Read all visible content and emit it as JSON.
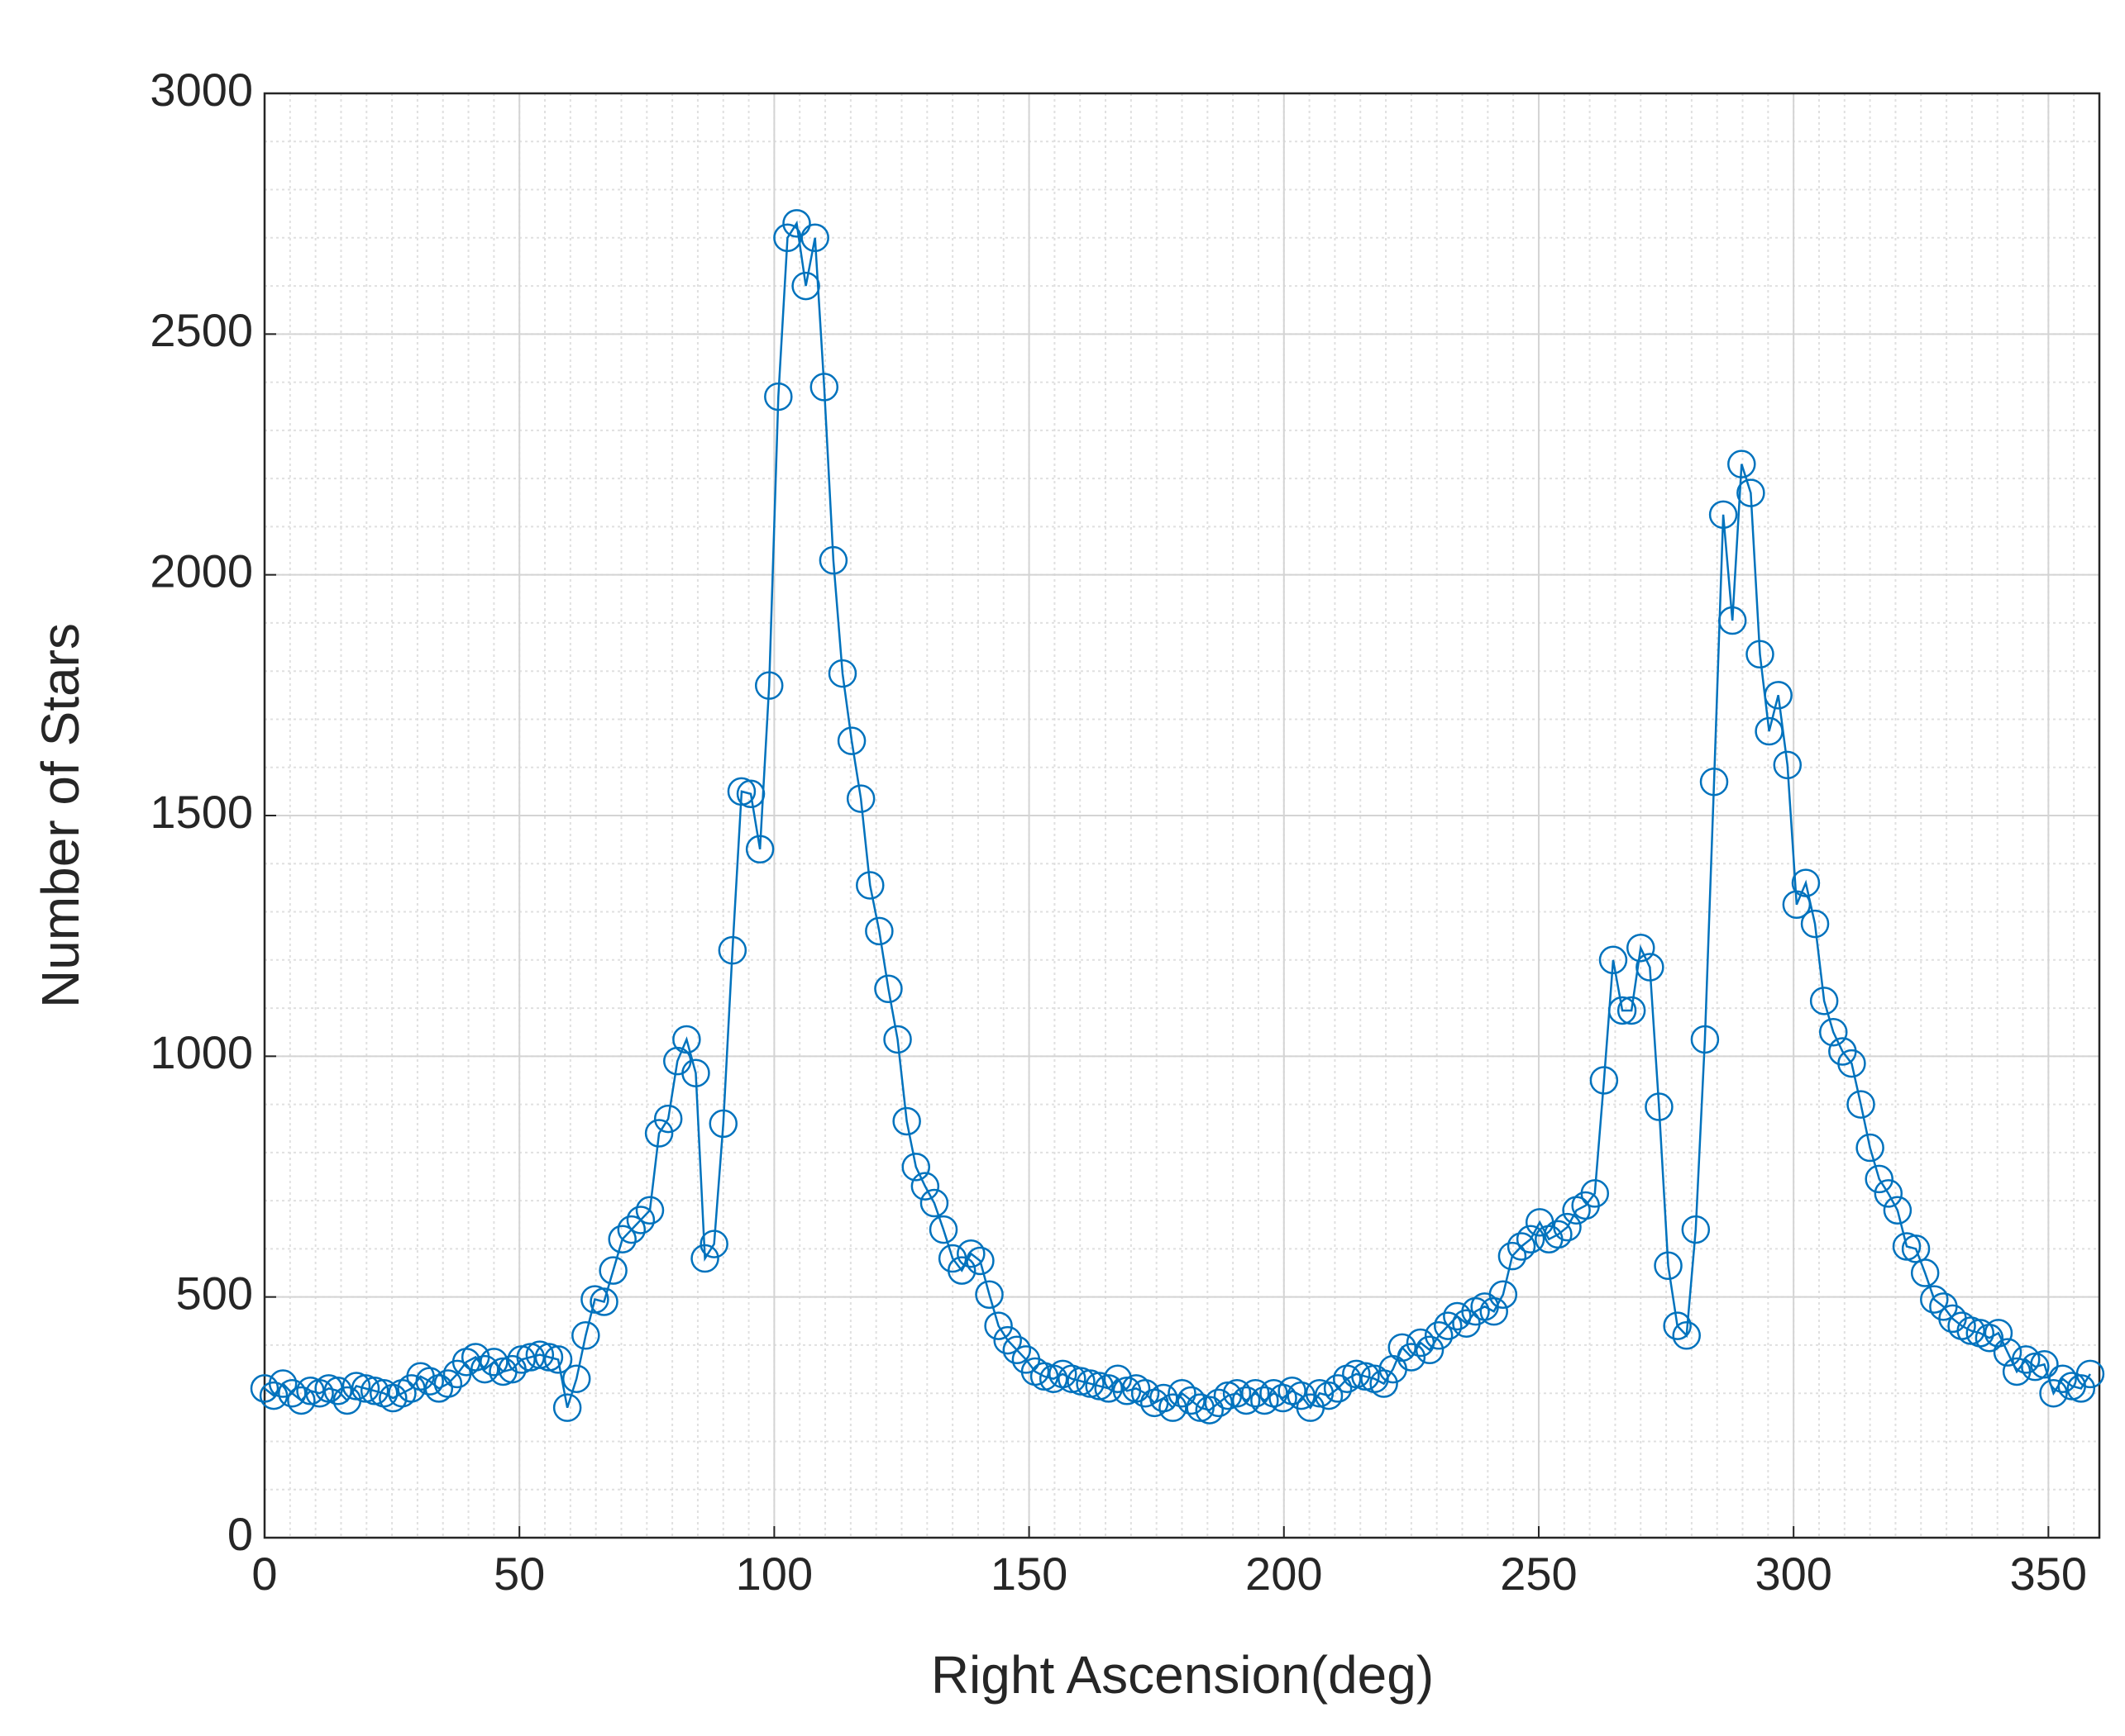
{
  "chart_data": {
    "type": "line",
    "xlabel": "Right Ascension(deg)",
    "ylabel": "Number of Stars",
    "x": [
      0,
      1.8,
      3.6,
      5.4,
      7.2,
      9,
      10.8,
      12.6,
      14.4,
      16.2,
      18,
      19.8,
      21.6,
      23.4,
      25.2,
      27,
      28.8,
      30.6,
      32.4,
      34.2,
      36,
      37.8,
      39.6,
      41.4,
      43.2,
      45,
      46.8,
      48.6,
      50.4,
      52.2,
      54,
      55.8,
      57.6,
      59.4,
      61.2,
      63,
      64.8,
      66.6,
      68.4,
      70.2,
      72,
      73.8,
      75.6,
      77.4,
      79.2,
      81,
      82.8,
      84.6,
      86.4,
      88.2,
      90,
      91.8,
      93.6,
      95.4,
      97.2,
      99,
      100.8,
      102.6,
      104.4,
      106.2,
      108,
      109.8,
      111.6,
      113.4,
      115.2,
      117,
      118.8,
      120.6,
      122.4,
      124.2,
      126,
      127.8,
      129.6,
      131.4,
      133.2,
      135,
      136.8,
      138.6,
      140.4,
      142.2,
      144,
      145.8,
      147.6,
      149.4,
      151.2,
      153,
      154.8,
      156.6,
      158.4,
      160.2,
      162,
      163.8,
      165.6,
      167.4,
      169.2,
      171,
      172.8,
      174.6,
      176.4,
      178.2,
      180,
      181.8,
      183.6,
      185.4,
      187.2,
      189,
      190.8,
      192.6,
      194.4,
      196.2,
      198,
      199.8,
      201.6,
      203.4,
      205.2,
      207,
      208.8,
      210.6,
      212.4,
      214.2,
      216,
      217.8,
      219.6,
      221.4,
      223.2,
      225,
      226.8,
      228.6,
      230.4,
      232.2,
      234,
      235.8,
      237.6,
      239.4,
      241.2,
      243,
      244.8,
      246.6,
      248.4,
      250.2,
      252,
      253.8,
      255.6,
      257.4,
      259.2,
      261,
      262.8,
      264.6,
      266.4,
      268.2,
      270,
      271.8,
      273.6,
      275.4,
      277.2,
      279,
      280.8,
      282.6,
      284.4,
      286.2,
      288,
      289.8,
      291.6,
      293.4,
      295.2,
      297,
      298.8,
      300.6,
      302.4,
      304.2,
      306,
      307.8,
      309.6,
      311.4,
      313.2,
      315,
      316.8,
      318.6,
      320.4,
      322.2,
      324,
      325.8,
      327.6,
      329.4,
      331.2,
      333,
      334.8,
      336.6,
      338.4,
      340.2,
      342,
      343.8,
      345.6,
      347.4,
      349.2,
      351,
      352.8,
      354.6,
      356.4,
      358.2
    ],
    "values": [
      310,
      295,
      320,
      300,
      285,
      305,
      300,
      310,
      305,
      285,
      315,
      310,
      305,
      300,
      290,
      300,
      310,
      335,
      325,
      310,
      320,
      340,
      365,
      375,
      350,
      365,
      345,
      350,
      370,
      375,
      380,
      375,
      370,
      270,
      330,
      420,
      495,
      490,
      555,
      620,
      640,
      660,
      680,
      840,
      870,
      990,
      1035,
      965,
      580,
      610,
      860,
      1220,
      1550,
      1545,
      1430,
      1770,
      2370,
      2700,
      2730,
      2600,
      2700,
      2390,
      2030,
      1795,
      1655,
      1535,
      1355,
      1260,
      1140,
      1035,
      865,
      770,
      730,
      695,
      640,
      580,
      555,
      590,
      575,
      505,
      440,
      410,
      390,
      370,
      345,
      335,
      330,
      340,
      330,
      325,
      320,
      315,
      310,
      330,
      305,
      310,
      300,
      280,
      290,
      270,
      300,
      285,
      270,
      265,
      280,
      295,
      300,
      285,
      300,
      285,
      300,
      290,
      305,
      295,
      270,
      300,
      295,
      310,
      330,
      340,
      335,
      330,
      320,
      350,
      395,
      375,
      405,
      390,
      420,
      440,
      460,
      445,
      470,
      480,
      470,
      505,
      585,
      605,
      620,
      655,
      620,
      630,
      645,
      680,
      690,
      715,
      950,
      1200,
      1095,
      1095,
      1225,
      1185,
      895,
      565,
      440,
      420,
      640,
      1035,
      1570,
      2125,
      1905,
      2230,
      2170,
      1835,
      1675,
      1750,
      1605,
      1315,
      1360,
      1275,
      1115,
      1050,
      1010,
      985,
      900,
      810,
      745,
      715,
      680,
      605,
      600,
      550,
      495,
      480,
      455,
      440,
      430,
      425,
      415,
      425,
      385,
      345,
      370,
      355,
      360,
      300,
      330,
      315,
      310,
      340
    ],
    "color": "#0072bd",
    "marker": "circle",
    "xlim": [
      0,
      360
    ],
    "xticks": [
      0,
      50,
      100,
      150,
      200,
      250,
      300,
      350
    ],
    "ylim": [
      0,
      3000
    ],
    "yticks": [
      0,
      500,
      1000,
      1500,
      2000,
      2500,
      3000
    ],
    "grid": true,
    "minor_grid": {
      "x_step": 5,
      "y_step": 100
    }
  }
}
